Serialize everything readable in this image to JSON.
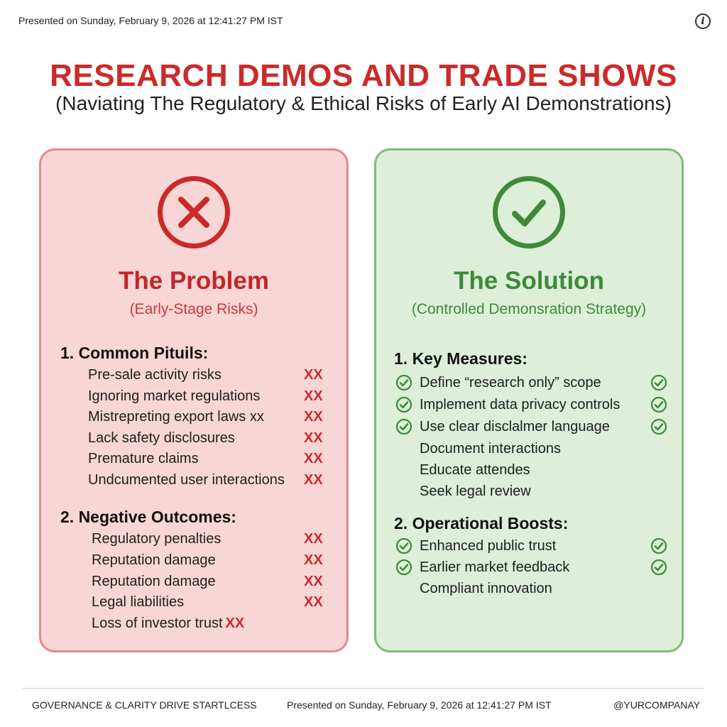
{
  "header": {
    "presented": "Presented on Sunday, February 9, 2026 at 12:41:27 PM IST",
    "info_icon": "info-icon"
  },
  "title": "RESEARCH DEMOS AND TRADE SHOWS",
  "subtitle": "(Naviating The Regulatory & Ethical Risks of Early AI Demonstrations)",
  "problem": {
    "icon": "x-circle-icon",
    "title": "The Problem",
    "subtitle": "(Early-Stage Risks)",
    "sections": [
      {
        "heading": "1. Common Pituils:",
        "items": [
          {
            "text": "Pre-sale activity risks",
            "mark": "XX"
          },
          {
            "text": "Ignoring market regulations",
            "mark": "XX"
          },
          {
            "text": "Mistrepreting export laws xx",
            "mark": "XX"
          },
          {
            "text": "Lack safety disclosures",
            "mark": "XX"
          },
          {
            "text": "Premature claims",
            "mark": "XX"
          },
          {
            "text": "Undcumented user interactions",
            "mark": "XX"
          }
        ]
      },
      {
        "heading": "2. Negative Outcomes:",
        "items": [
          {
            "text": "Regulatory penalties",
            "mark": "XX"
          },
          {
            "text": "Reputation damage",
            "mark": "XX"
          },
          {
            "text": "Reputation damage",
            "mark": "XX"
          },
          {
            "text": "Legal liabilities",
            "mark": "XX"
          },
          {
            "text": "Loss of investor trust",
            "mark": "XX"
          }
        ]
      }
    ]
  },
  "solution": {
    "icon": "check-circle-icon",
    "title": "The Solution",
    "subtitle": "(Controlled Demonsration Strategy)",
    "sections": [
      {
        "heading": "1. Key Measures:",
        "items": [
          {
            "text": "Define “research only” scope",
            "checked": true
          },
          {
            "text": "Implement data privacy controls",
            "checked": true
          },
          {
            "text": "Use clear disclalmer language",
            "checked": true
          },
          {
            "text": "Document interactions",
            "checked": false
          },
          {
            "text": "Educate attendes",
            "checked": false
          },
          {
            "text": "Seek legal review",
            "checked": false
          }
        ]
      },
      {
        "heading": "2. Operational Boosts:",
        "items": [
          {
            "text": "Enhanced public trust",
            "checked": true
          },
          {
            "text": "Earlier market feedback",
            "checked": true
          },
          {
            "text": "Compliant innovation",
            "checked": false
          }
        ]
      }
    ]
  },
  "footer": {
    "left": "GOVERNANCE & CLARITY DRIVE STARTLCESS",
    "center": "Presented on Sunday, February 9, 2026 at 12:41:27 PM IST",
    "right": "@YURCOMPANAY"
  },
  "colors": {
    "title_red": "#cc2a2a",
    "problem_bg": "#f8d6d6",
    "solution_bg": "#ddefd9",
    "check_green": "#3f8a3a"
  }
}
